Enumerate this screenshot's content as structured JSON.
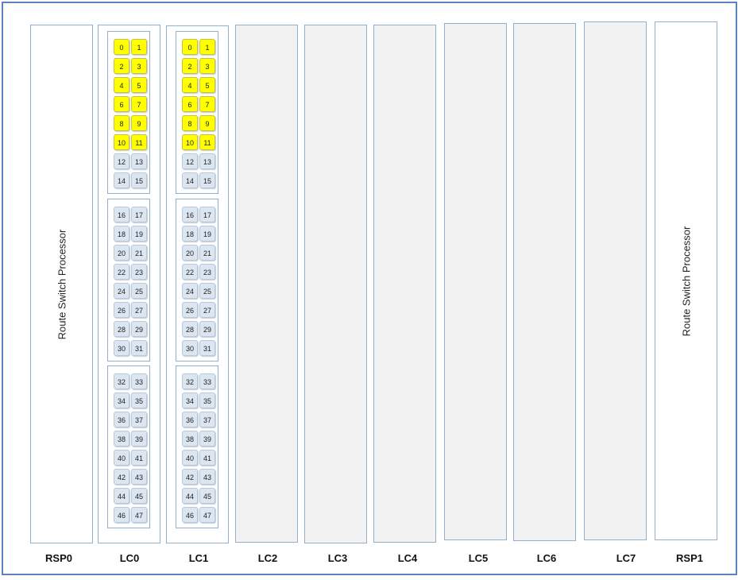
{
  "colors": {
    "frame": "#5b86bd",
    "slot_border": "#8fb0cf",
    "empty_slot_fill": "#f2f2f2",
    "port_inactive": "#dce6f1",
    "port_active": "#ffff00"
  },
  "rsp_text": "Route Switch Processor",
  "slots": [
    {
      "id": "RSP0",
      "type": "rsp"
    },
    {
      "id": "LC0",
      "type": "linecard"
    },
    {
      "id": "LC1",
      "type": "linecard"
    },
    {
      "id": "LC2",
      "type": "empty"
    },
    {
      "id": "LC3",
      "type": "empty"
    },
    {
      "id": "LC4",
      "type": "empty"
    },
    {
      "id": "LC5",
      "type": "empty"
    },
    {
      "id": "LC6",
      "type": "empty"
    },
    {
      "id": "LC7",
      "type": "empty"
    },
    {
      "id": "RSP1",
      "type": "rsp"
    }
  ],
  "linecard_ports": {
    "groups": [
      [
        "0",
        "1",
        "2",
        "3",
        "4",
        "5",
        "6",
        "7",
        "8",
        "9",
        "10",
        "11",
        "12",
        "13",
        "14",
        "15"
      ],
      [
        "16",
        "17",
        "18",
        "19",
        "20",
        "21",
        "22",
        "23",
        "24",
        "25",
        "26",
        "27",
        "28",
        "29",
        "30",
        "31"
      ],
      [
        "32",
        "33",
        "34",
        "35",
        "36",
        "37",
        "38",
        "39",
        "40",
        "41",
        "42",
        "43",
        "44",
        "45",
        "46",
        "47"
      ]
    ],
    "active_ports": [
      "0",
      "1",
      "2",
      "3",
      "4",
      "5",
      "6",
      "7",
      "8",
      "9",
      "10",
      "11"
    ]
  }
}
